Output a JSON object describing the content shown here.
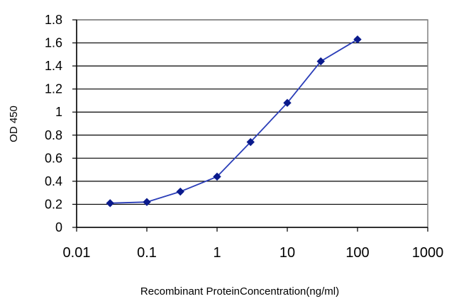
{
  "chart_data": {
    "type": "line",
    "x_scale": "log",
    "x_tick_labels": [
      "0.01",
      "0.1",
      "1",
      "10",
      "100",
      "1000"
    ],
    "y_tick_labels": [
      "0",
      "0.2",
      "0.4",
      "0.6",
      "0.8",
      "1",
      "1.2",
      "1.4",
      "1.6",
      "1.8"
    ],
    "xlim": [
      0.01,
      1000
    ],
    "ylim": [
      0,
      1.8
    ],
    "xlabel": "Recombinant ProteinConcentration(ng/ml)",
    "ylabel": "OD 450",
    "grid": "horizontal",
    "series": [
      {
        "x": [
          0.03,
          0.1,
          0.3,
          1,
          3,
          10,
          30,
          100
        ],
        "y": [
          0.21,
          0.22,
          0.31,
          0.44,
          0.74,
          1.08,
          1.44,
          1.63
        ]
      }
    ],
    "colors": {
      "line": "#2a3db8",
      "marker": "#0a1a8c",
      "grid": "#000000",
      "plot_border": "#808080"
    }
  }
}
